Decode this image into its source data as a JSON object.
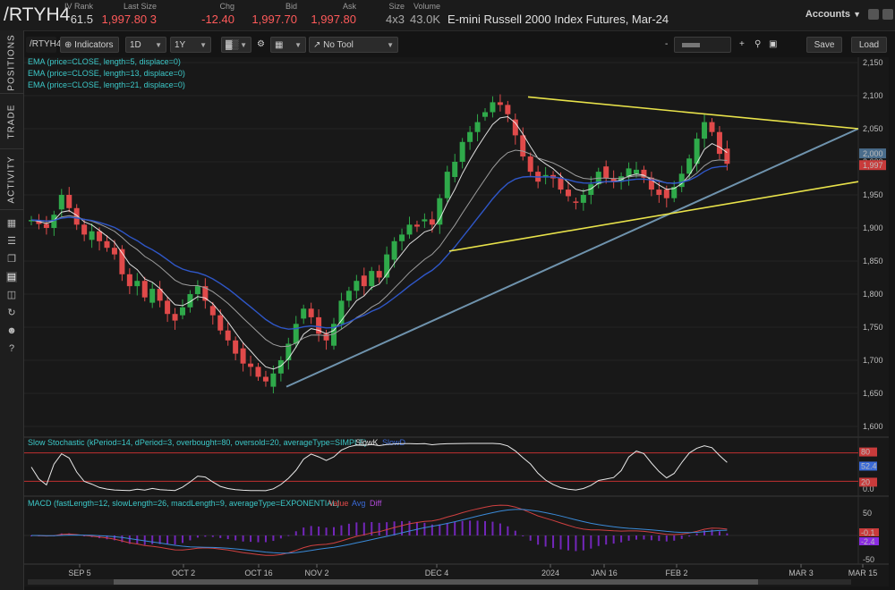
{
  "header": {
    "symbol": "/RTYH4",
    "fields": [
      {
        "label": "IV Rank",
        "value": "61.5",
        "color": "#d8d8d8"
      },
      {
        "label": "Last Size",
        "value": "1,997.80 3",
        "color": "#ff5a5a"
      },
      {
        "label": "Chg",
        "value": "-12.40",
        "color": "#ff5a5a"
      },
      {
        "label": "Bid",
        "value": "1,997.70",
        "color": "#ff5a5a"
      },
      {
        "label": "Ask",
        "value": "1,997.80",
        "color": "#ff5a5a"
      },
      {
        "label": "Size",
        "value": "4x3",
        "color": "#aaaaaa"
      },
      {
        "label": "Volume",
        "value": "43.0K",
        "color": "#aaaaaa"
      }
    ],
    "description": "E-mini Russell 2000 Index Futures, Mar-24",
    "accounts_label": "Accounts"
  },
  "sidebar": {
    "tabs": [
      "POSITIONS",
      "TRADE",
      "ACTIVITY"
    ],
    "icons": [
      "grid-icon",
      "list-icon",
      "copy-icon",
      "chart-icon",
      "layout-icon",
      "history-icon",
      "people-icon",
      "help-icon"
    ]
  },
  "toolbar": {
    "symbol_value": "/RTYH4",
    "indicators_label": "Indicators",
    "aggregation": "1D",
    "period": "1Y",
    "drawing_tool": "No Tool",
    "save_label": "Save",
    "load_label": "Load"
  },
  "price_legend": [
    "EMA (price=CLOSE, length=5, displace=0)",
    "EMA (price=CLOSE, length=13, displace=0)",
    "EMA (price=CLOSE, length=21, displace=0)"
  ],
  "stoch_legend": {
    "title": "Slow Stochastic (kPeriod=14, dPeriod=3, overbought=80, oversold=20, averageType=SIMPLE)",
    "k": "SlowK",
    "d": "SlowD"
  },
  "macd_legend": {
    "title": "MACD (fastLength=12, slowLength=26, macdLength=9, averageType=EXPONENTIAL)",
    "value": "Value",
    "avg": "Avg",
    "diff": "Diff"
  },
  "price_axis": [
    "2,150",
    "2,100",
    "2,050",
    "2,000",
    "1,950",
    "1,900",
    "1,850",
    "1,800",
    "1,750",
    "1,700",
    "1,650",
    "1,600"
  ],
  "stoch_axis": [
    "50",
    "0.0"
  ],
  "macd_axis": [
    "50",
    "-50"
  ],
  "last_price_labels": [
    "2,000",
    "1,997"
  ],
  "stoch_labels": [
    "80",
    "52.4",
    "20"
  ],
  "macd_labels": [
    "-0.1",
    "-2.4"
  ],
  "date_axis": [
    "SEP 5",
    "OCT 2",
    "OCT 16",
    "NOV 2",
    "DEC 4",
    "2024",
    "JAN 16",
    "FEB 2",
    "MAR 3",
    "MAR 15"
  ],
  "colors": {
    "up": "#2fa94a",
    "down": "#e04a4a",
    "ema5": "#ffffff",
    "ema13": "#9e9e9e",
    "ema21": "#2f57c8",
    "trend_yellow": "#e8e24a",
    "trend_blue": "#6f93ad",
    "legend": "#3cc8c8"
  },
  "chart_data": {
    "type": "candlestick",
    "unit": "index points",
    "ylim": [
      1600,
      2160
    ],
    "closes": [
      1912,
      1906,
      1900,
      1920,
      1950,
      1930,
      1905,
      1890,
      1895,
      1880,
      1870,
      1860,
      1830,
      1812,
      1820,
      1795,
      1808,
      1790,
      1770,
      1760,
      1780,
      1800,
      1812,
      1790,
      1768,
      1745,
      1730,
      1710,
      1695,
      1690,
      1675,
      1668,
      1680,
      1700,
      1725,
      1755,
      1778,
      1765,
      1740,
      1730,
      1755,
      1790,
      1805,
      1820,
      1812,
      1835,
      1825,
      1860,
      1880,
      1890,
      1905,
      1902,
      1913,
      1905,
      1945,
      1985,
      2000,
      2030,
      2045,
      2060,
      2075,
      2090,
      2086,
      2072,
      2040,
      2008,
      1985,
      1970,
      1980,
      1975,
      1958,
      1948,
      1938,
      1950,
      1966,
      1985,
      1975,
      1970,
      1978,
      1990,
      1988,
      1976,
      1958,
      1950,
      1945,
      1962,
      1982,
      2005,
      2035,
      2060,
      2045,
      2012,
      1997
    ],
    "ema_lengths": [
      5,
      13,
      21
    ],
    "trendlines": 3
  }
}
